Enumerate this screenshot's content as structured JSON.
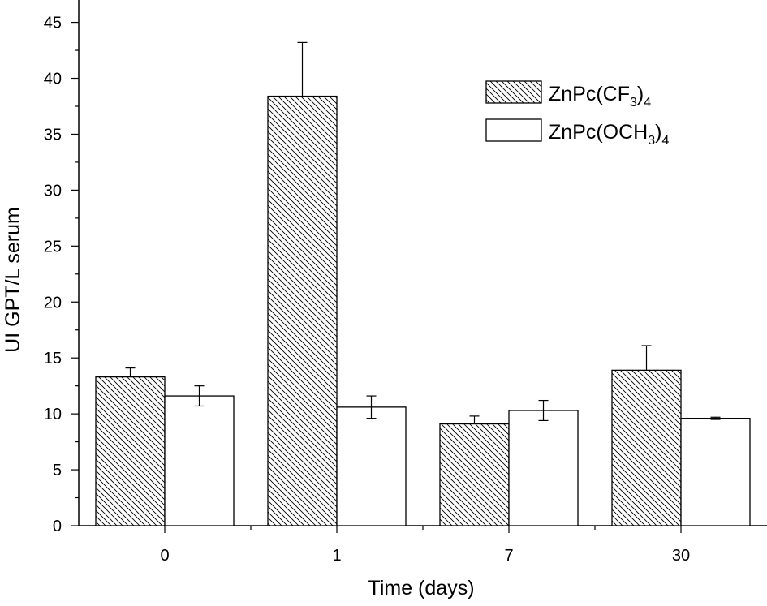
{
  "chart_data": {
    "type": "bar",
    "xlabel": "Time (days)",
    "ylabel": "UI GPT/L serum",
    "categories": [
      "0",
      "1",
      "7",
      "30"
    ],
    "ylim": [
      0,
      47
    ],
    "yticks": [
      "0",
      "5",
      "10",
      "15",
      "20",
      "25",
      "30",
      "35",
      "40",
      "45"
    ],
    "grid": false,
    "legend_position": "top-right",
    "series": [
      {
        "name": "ZnPc(CF3)4",
        "label_parts": {
          "main": "ZnPc(CF",
          "sub1": "3",
          "mid": ")",
          "sub2": "4"
        },
        "pattern": "hatched",
        "values": [
          13.3,
          38.4,
          9.1,
          13.9
        ],
        "errors": [
          0.8,
          4.8,
          0.7,
          2.2
        ]
      },
      {
        "name": "ZnPc(OCH3)4",
        "label_parts": {
          "main": "ZnPc(OCH",
          "sub1": "3",
          "mid": ")",
          "sub2": "4"
        },
        "pattern": "white",
        "values": [
          11.6,
          10.6,
          10.3,
          9.6
        ],
        "errors": [
          0.9,
          1.0,
          0.9,
          0.1
        ]
      }
    ]
  }
}
